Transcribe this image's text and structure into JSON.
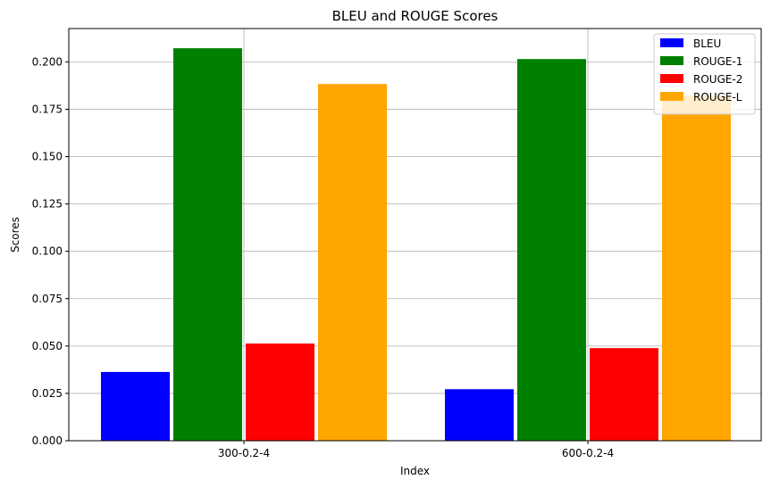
{
  "chart_data": {
    "type": "bar",
    "title": "BLEU and ROUGE Scores",
    "xlabel": "Index",
    "ylabel": "Scores",
    "categories": [
      "300-0.2-4",
      "600-0.2-4"
    ],
    "series": [
      {
        "name": "BLEU",
        "color": "#0000ff",
        "values": [
          0.0363,
          0.0272
        ]
      },
      {
        "name": "ROUGE-1",
        "color": "#008000",
        "values": [
          0.2072,
          0.2015
        ]
      },
      {
        "name": "ROUGE-2",
        "color": "#ff0000",
        "values": [
          0.0513,
          0.0489
        ]
      },
      {
        "name": "ROUGE-L",
        "color": "#ffa500",
        "values": [
          0.1883,
          0.1823
        ]
      }
    ],
    "ylim": [
      0,
      0.2176
    ],
    "yticks": [
      "0.000",
      "0.025",
      "0.050",
      "0.075",
      "0.100",
      "0.125",
      "0.150",
      "0.175",
      "0.200"
    ],
    "grid": true,
    "legend_position": "top-right"
  }
}
